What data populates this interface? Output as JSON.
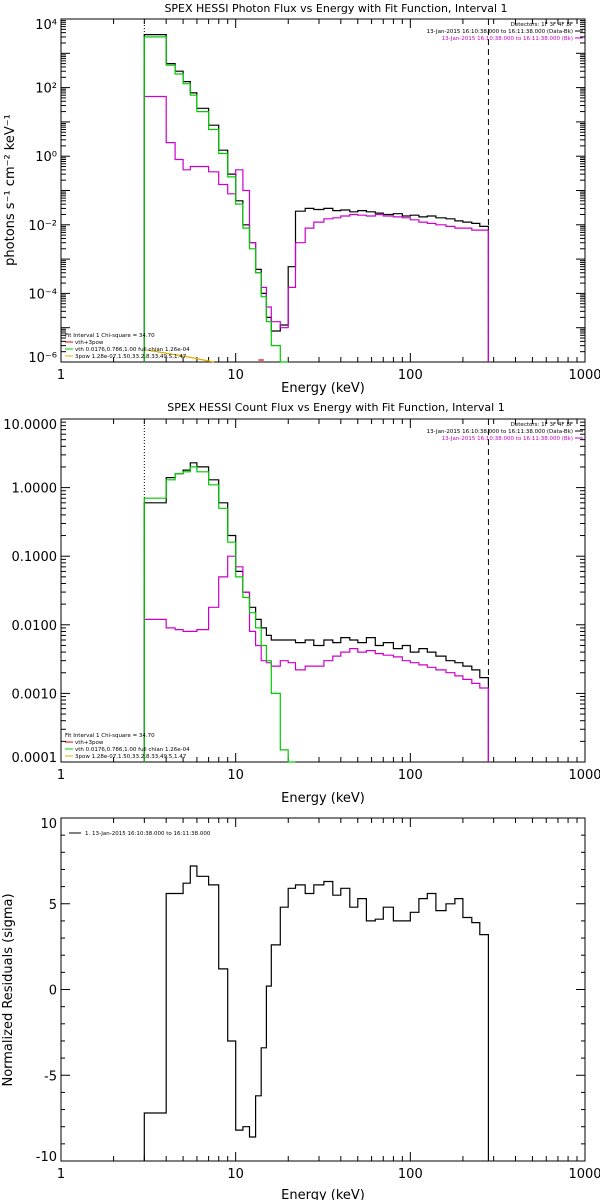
{
  "chart_data": [
    {
      "id": "photon",
      "type": "line",
      "title": "SPEX HESSI Photon Flux vs Energy with Fit Function, Interval 1",
      "xlabel": "Energy (keV)",
      "ylabel": "photons s⁻¹ cm⁻² keV⁻¹",
      "xscale": "log",
      "yscale": "log",
      "xlim": [
        1,
        1000
      ],
      "ylim": [
        1e-06,
        10000.0
      ],
      "x_ticks": [
        {
          "v": 1,
          "label": "1"
        },
        {
          "v": 10,
          "label": "10"
        },
        {
          "v": 100,
          "label": "100"
        },
        {
          "v": 1000,
          "label": "1000"
        }
      ],
      "y_ticks": [
        {
          "v": 10000.0,
          "label": "10⁴"
        },
        {
          "v": 100.0,
          "label": "10²"
        },
        {
          "v": 1,
          "label": "10⁰"
        },
        {
          "v": 0.01,
          "label": "10⁻²"
        },
        {
          "v": 0.0001,
          "label": "10⁻⁴"
        },
        {
          "v": 1e-06,
          "label": "10⁻⁶"
        }
      ],
      "legend_top_right": [
        {
          "text": "Detectors: 1F 3F 4F 8F",
          "color": "#000000"
        },
        {
          "text": "13-Jan-2015 16:10:38.000 to 16:11:38.000 (Data-Bk)",
          "color": "#000000"
        },
        {
          "text": "13-Jan-2015 16:10:38.000 to 16:11:38.000 (Bk)",
          "color": "#cc00cc"
        }
      ],
      "legend_bottom_left": [
        {
          "text": "Fit Interval 1   Chi-square = 34.70",
          "color": "#000000"
        },
        {
          "text": "vth+3pow",
          "color": "#dd0000"
        },
        {
          "text": "vth 0.0176,0.786,1.00  full chian 1.26e-04",
          "color": "#00cc00"
        },
        {
          "text": "3pow 1.28e-07,1.50,33.2,8.33,49.5,1.47",
          "color": "#e0b000"
        }
      ],
      "vlines": [
        {
          "x": 3,
          "style": "dotted"
        },
        {
          "x": 280,
          "style": "dashed"
        }
      ],
      "edges": [
        3,
        3.5,
        4,
        4.5,
        5,
        5.5,
        6,
        7,
        8,
        9,
        10,
        11,
        12,
        13,
        14,
        15,
        16,
        18,
        20,
        22,
        25,
        28,
        32,
        36,
        40,
        45,
        50,
        56,
        63,
        70,
        80,
        90,
        100,
        112,
        125,
        140,
        160,
        180,
        200,
        225,
        250,
        280
      ],
      "series": [
        {
          "name": "Data-Bk",
          "color": "#000000",
          "values": [
            3500,
            3500,
            500,
            300,
            150,
            70,
            25,
            8,
            1.5,
            0.3,
            0.05,
            0.01,
            0.003,
            0.0005,
            0.0001,
            2e-05,
            8e-06,
            1.2e-05,
            0.0006,
            0.025,
            0.03,
            0.028,
            0.03,
            0.026,
            0.027,
            0.024,
            0.026,
            0.024,
            0.022,
            0.02,
            0.021,
            0.018,
            0.019,
            0.017,
            0.018,
            0.016,
            0.015,
            0.013,
            0.012,
            0.011,
            0.009
          ]
        },
        {
          "name": "Bk",
          "color": "#cc00cc",
          "values": [
            55,
            55,
            2.5,
            0.8,
            0.4,
            0.5,
            0.5,
            0.35,
            0.15,
            0.08,
            0.4,
            0.1,
            0.003,
            0.0004,
            0.00015,
            4e-05,
            1.5e-05,
            1e-05,
            0.00015,
            0.003,
            0.008,
            0.012,
            0.015,
            0.016,
            0.018,
            0.02,
            0.019,
            0.018,
            0.02,
            0.018,
            0.017,
            0.016,
            0.014,
            0.012,
            0.011,
            0.01,
            0.009,
            0.008,
            0.008,
            0.007,
            0.007
          ]
        },
        {
          "name": "vth",
          "color": "#00cc00",
          "values": [
            3000,
            3000,
            450,
            250,
            130,
            60,
            20,
            6,
            1.2,
            0.25,
            0.04,
            0.008,
            0.002,
            0.0004,
            8e-05,
            1.5e-05,
            3e-06,
            1e-07
          ]
        }
      ]
    },
    {
      "id": "count",
      "type": "line",
      "title": "SPEX HESSI Count Flux vs Energy with Fit Function, Interval 1",
      "xlabel": "Energy (keV)",
      "ylabel": "",
      "xscale": "log",
      "yscale": "log",
      "xlim": [
        1,
        1000
      ],
      "ylim": [
        0.0001,
        10
      ],
      "x_ticks": [
        {
          "v": 1,
          "label": "1"
        },
        {
          "v": 10,
          "label": "10"
        },
        {
          "v": 100,
          "label": "100"
        },
        {
          "v": 1000,
          "label": "1000"
        }
      ],
      "y_ticks": [
        {
          "v": 10,
          "label": "10.0000"
        },
        {
          "v": 1,
          "label": "1.0000"
        },
        {
          "v": 0.1,
          "label": "0.1000"
        },
        {
          "v": 0.01,
          "label": "0.0100"
        },
        {
          "v": 0.001,
          "label": "0.0010"
        },
        {
          "v": 0.0001,
          "label": "0.0001"
        }
      ],
      "legend_top_right": [
        {
          "text": "Detectors: 1F 3F 4F 8F",
          "color": "#000000"
        },
        {
          "text": "13-Jan-2015 16:10:38.000 to 16:11:38.000 (Data-Bk)",
          "color": "#000000"
        },
        {
          "text": "13-Jan-2015 16:10:38.000 to 16:11:38.000 (Bk)",
          "color": "#cc00cc"
        }
      ],
      "legend_bottom_left": [
        {
          "text": "Fit Interval 1   Chi-square = 34.70",
          "color": "#000000"
        },
        {
          "text": "vth+3pow",
          "color": "#dd0000"
        },
        {
          "text": "vth 0.0176,0.786,1.00  full chian 1.26e-04",
          "color": "#00cc00"
        },
        {
          "text": "3pow 1.28e-07,1.50,33.2,8.33,49.5,1.47",
          "color": "#e0b000"
        }
      ],
      "vlines": [
        {
          "x": 3,
          "style": "dotted"
        },
        {
          "x": 280,
          "style": "dashed"
        }
      ],
      "edges": [
        3,
        3.5,
        4,
        4.5,
        5,
        5.5,
        6,
        7,
        8,
        9,
        10,
        11,
        12,
        13,
        14,
        15,
        16,
        18,
        20,
        22,
        25,
        28,
        32,
        36,
        40,
        45,
        50,
        56,
        63,
        70,
        80,
        90,
        100,
        112,
        125,
        140,
        160,
        180,
        200,
        225,
        250,
        280
      ],
      "series": [
        {
          "name": "Data-Bk",
          "color": "#000000",
          "values": [
            0.6,
            0.6,
            1.4,
            1.6,
            1.8,
            2.3,
            2.0,
            1.3,
            0.6,
            0.2,
            0.06,
            0.03,
            0.018,
            0.012,
            0.009,
            0.007,
            0.006,
            0.006,
            0.006,
            0.0055,
            0.006,
            0.005,
            0.006,
            0.0055,
            0.0065,
            0.006,
            0.0055,
            0.0065,
            0.005,
            0.0055,
            0.0045,
            0.005,
            0.004,
            0.0045,
            0.004,
            0.0035,
            0.003,
            0.0028,
            0.0025,
            0.0022,
            0.0017
          ]
        },
        {
          "name": "Bk",
          "color": "#cc00cc",
          "values": [
            0.012,
            0.012,
            0.009,
            0.0085,
            0.008,
            0.008,
            0.0085,
            0.018,
            0.05,
            0.1,
            0.07,
            0.03,
            0.008,
            0.005,
            0.003,
            0.0028,
            0.0025,
            0.003,
            0.0028,
            0.0022,
            0.0025,
            0.0025,
            0.003,
            0.0035,
            0.004,
            0.0045,
            0.004,
            0.0042,
            0.0038,
            0.0036,
            0.0034,
            0.003,
            0.0028,
            0.0026,
            0.0024,
            0.0022,
            0.002,
            0.0018,
            0.0016,
            0.0014,
            0.0012
          ]
        },
        {
          "name": "vth",
          "color": "#00cc00",
          "values": [
            0.7,
            0.7,
            1.3,
            1.6,
            1.7,
            2.0,
            1.7,
            1.1,
            0.5,
            0.16,
            0.05,
            0.025,
            0.015,
            0.009,
            0.005,
            0.003,
            0.001,
            0.00015,
            5e-05
          ]
        }
      ]
    },
    {
      "id": "residuals",
      "type": "line",
      "title": "",
      "xlabel": "Energy (keV)",
      "ylabel": "Normalized Residuals (sigma)",
      "xscale": "log",
      "yscale": "linear",
      "xlim": [
        1,
        1000
      ],
      "ylim": [
        -10,
        10
      ],
      "x_ticks": [
        {
          "v": 1,
          "label": "1"
        },
        {
          "v": 10,
          "label": "10"
        },
        {
          "v": 100,
          "label": "100"
        },
        {
          "v": 1000,
          "label": "1000"
        }
      ],
      "y_ticks": [
        {
          "v": 10,
          "label": "10"
        },
        {
          "v": 5,
          "label": "5"
        },
        {
          "v": 0,
          "label": "0"
        },
        {
          "v": -5,
          "label": "-5"
        },
        {
          "v": -10,
          "label": "-10"
        }
      ],
      "legend_top_left": [
        {
          "text": "1. 13-Jan-2015 16:10:38.000 to 16:11:38.000",
          "color": "#000000"
        }
      ],
      "edges": [
        3,
        3.5,
        4,
        4.5,
        5,
        5.5,
        6,
        7,
        8,
        9,
        10,
        11,
        12,
        13,
        14,
        15,
        16,
        18,
        20,
        22,
        25,
        28,
        32,
        36,
        40,
        45,
        50,
        56,
        63,
        70,
        80,
        90,
        100,
        112,
        125,
        140,
        160,
        180,
        200,
        225,
        250,
        280
      ],
      "series": [
        {
          "name": "1. 13-Jan-2015 16:10:38.000 to 16:11:38.000",
          "color": "#000000",
          "values": [
            -7.2,
            -7.2,
            5.6,
            5.6,
            6.2,
            7.2,
            6.6,
            6.1,
            1.2,
            -3.0,
            -8.2,
            -8.0,
            -8.6,
            -6.2,
            -3.4,
            0.2,
            2.6,
            4.8,
            5.9,
            6.1,
            5.6,
            6.1,
            6.3,
            5.5,
            5.9,
            4.8,
            5.3,
            4.0,
            4.1,
            4.8,
            4.0,
            4.0,
            4.5,
            5.3,
            5.6,
            4.6,
            5.0,
            5.3,
            4.2,
            3.9,
            3.2
          ]
        }
      ]
    }
  ]
}
